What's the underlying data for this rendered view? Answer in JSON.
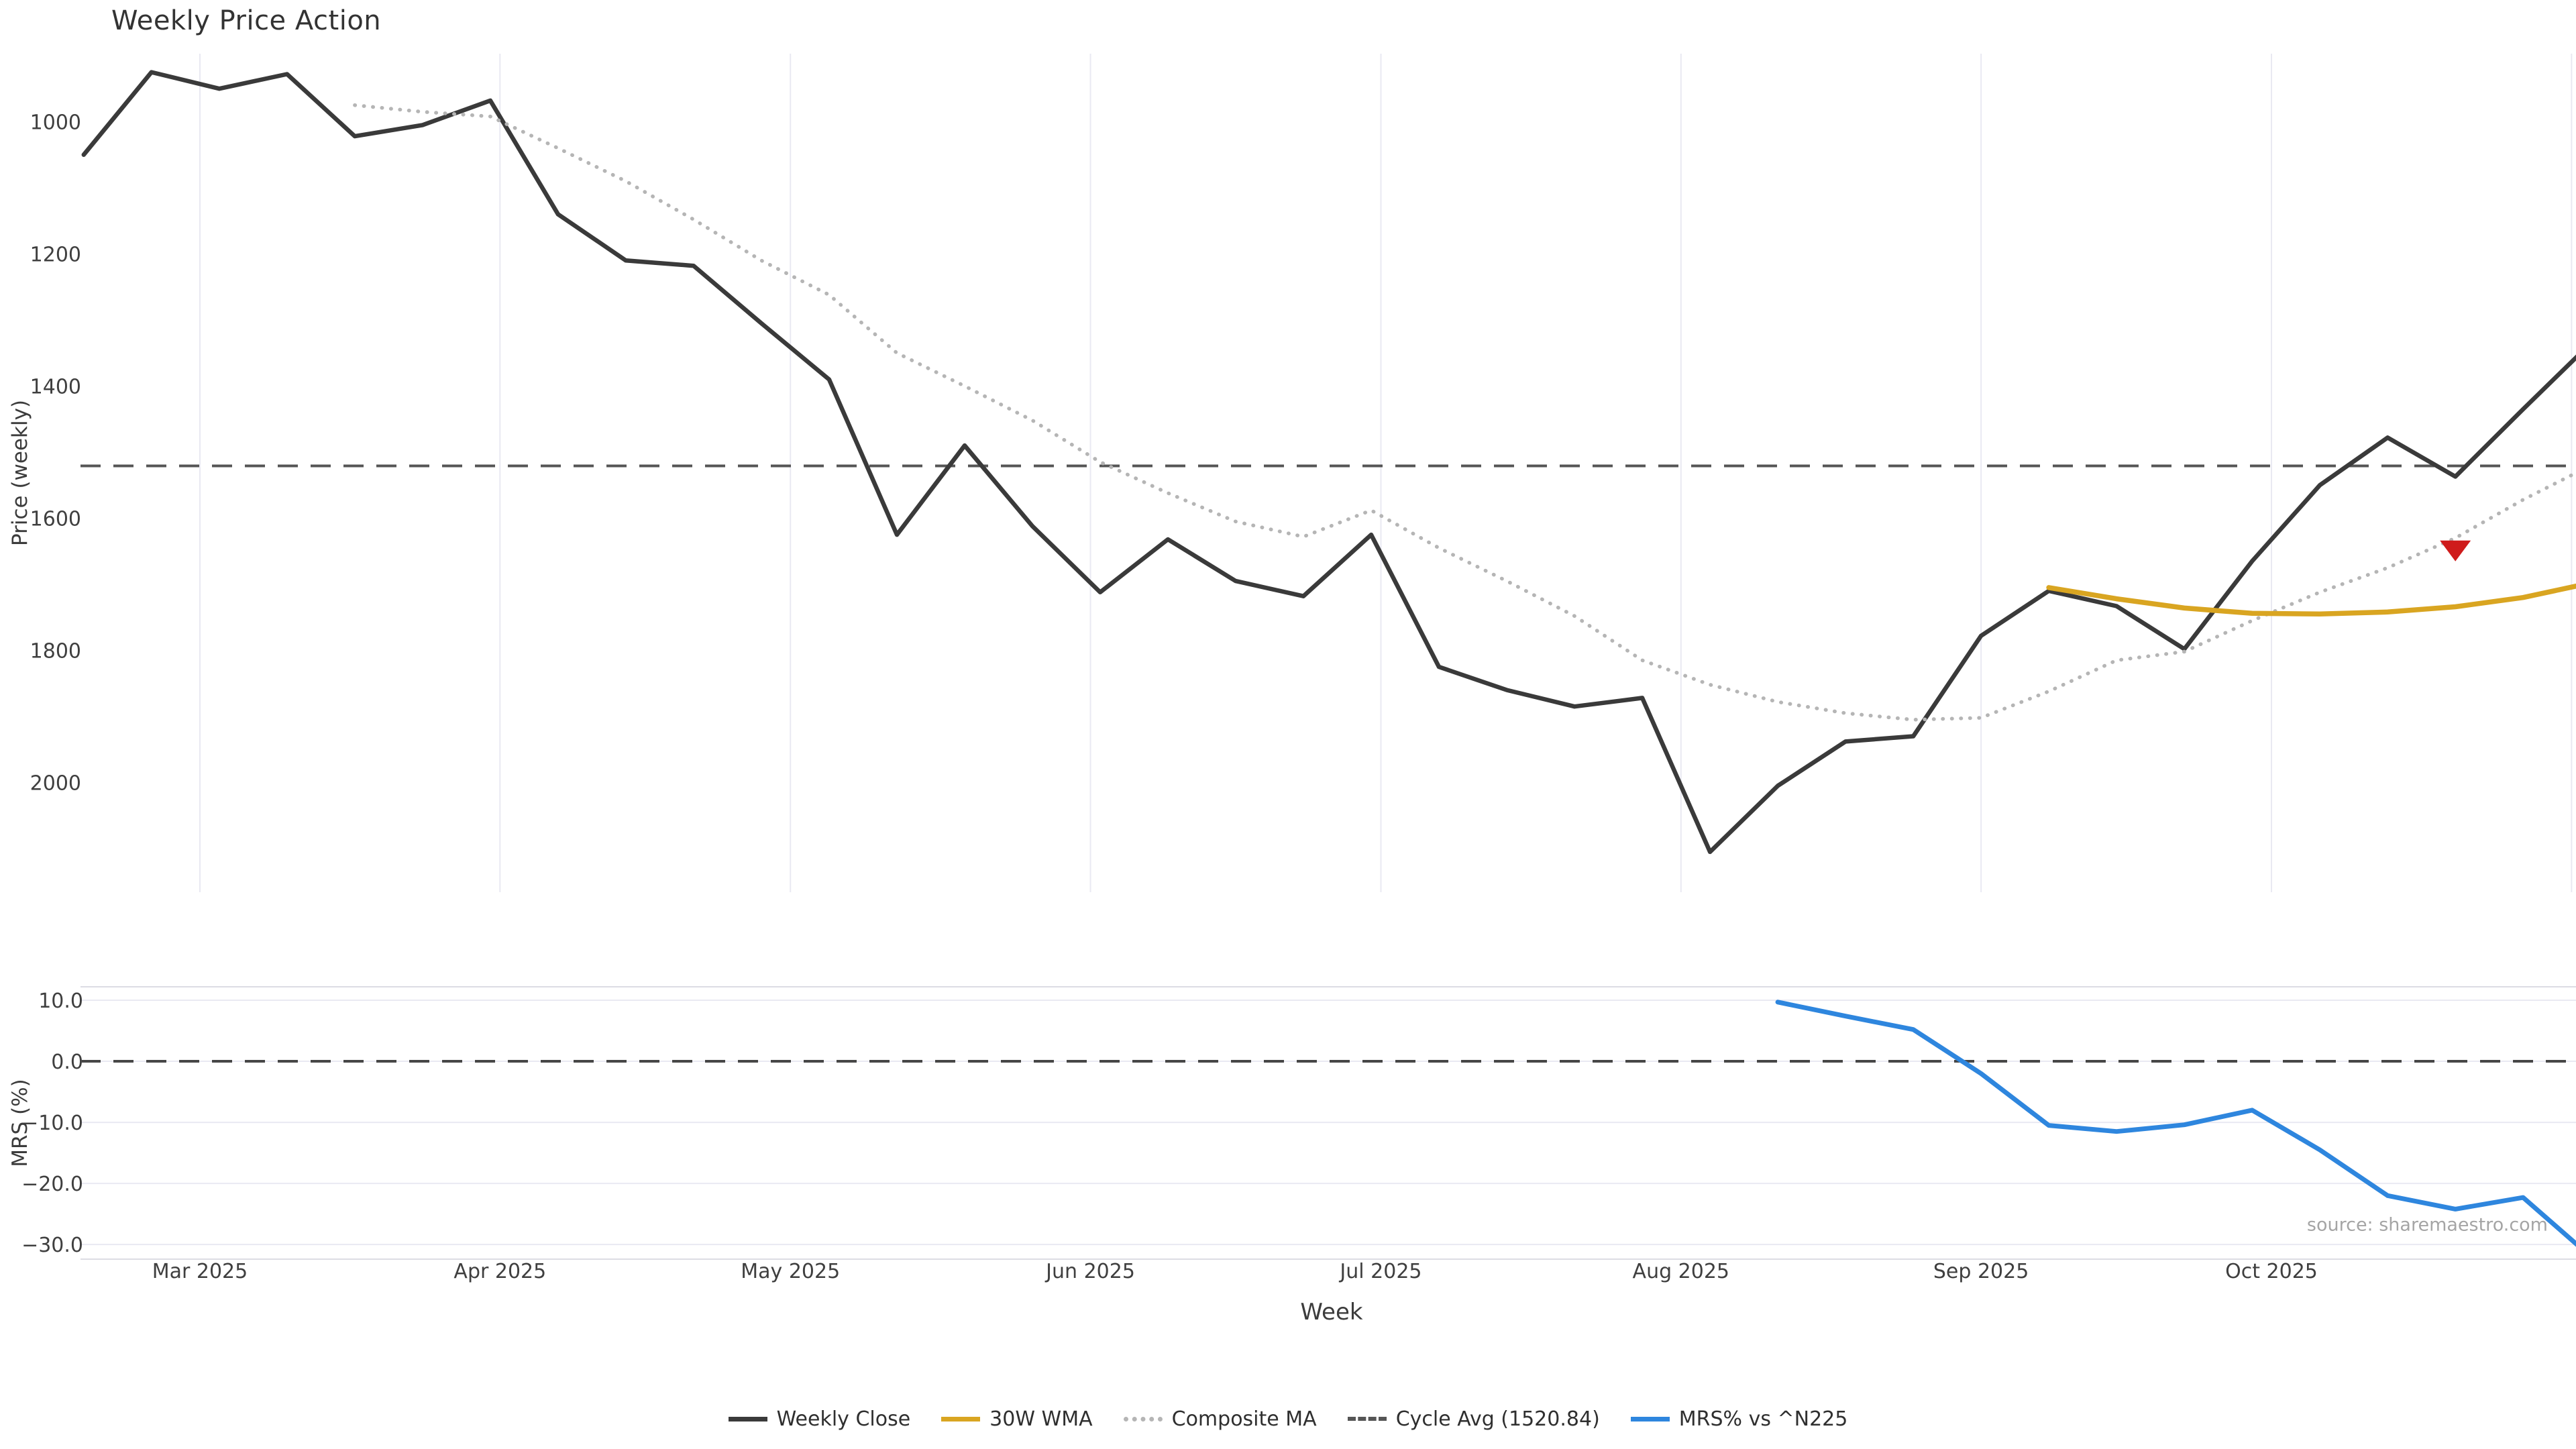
{
  "title": "Weekly Price Action",
  "source_note": "source: sharemaestro.com",
  "colors": {
    "weekly_close": "#3a3a3a",
    "wma_30w": "#d9a521",
    "composite_ma": "#b5b5b5",
    "cycle_avg": "#555555",
    "mrs": "#2e86de",
    "marker_red": "#cf1b1b",
    "gridline": "#e9e9f2",
    "spine": "#dcdce4",
    "tick_text": "#3f3f3f"
  },
  "legend": {
    "items": [
      {
        "label": "Weekly Close",
        "color": "#3a3a3a",
        "style": "solid"
      },
      {
        "label": "30W WMA",
        "color": "#d9a521",
        "style": "solid"
      },
      {
        "label": "Composite MA",
        "color": "#b5b5b5",
        "style": "dotted"
      },
      {
        "label": "Cycle Avg (1520.84)",
        "color": "#555555",
        "style": "dashed"
      },
      {
        "label": "MRS% vs ^N225",
        "color": "#2e86de",
        "style": "solid"
      }
    ]
  },
  "chart_data": {
    "type": "line",
    "title": "Weekly Price Action",
    "xlabel": "Week",
    "x_frequency": "weekly",
    "months": [
      {
        "date": "2025-03-01",
        "label": "Mar 2025"
      },
      {
        "date": "2025-04-01",
        "label": "Apr 2025"
      },
      {
        "date": "2025-05-01",
        "label": "May 2025"
      },
      {
        "date": "2025-06-01",
        "label": "Jun 2025"
      },
      {
        "date": "2025-07-01",
        "label": "Jul 2025"
      },
      {
        "date": "2025-08-01",
        "label": "Aug 2025"
      },
      {
        "date": "2025-09-01",
        "label": "Sep 2025"
      },
      {
        "date": "2025-10-01",
        "label": "Oct 2025"
      },
      {
        "date": "2025-11-01",
        "label": ""
      }
    ],
    "panels": [
      {
        "name": "price",
        "ylabel": "Price (weekly)",
        "yticks": [
          1000,
          1200,
          1400,
          1600,
          1800,
          2000
        ],
        "ylim": [
          897,
          2166
        ],
        "grid": "vertical-months",
        "hline": {
          "name": "Cycle Avg",
          "value": 1520.84,
          "color": "#555555",
          "style": "dashed"
        },
        "series": [
          {
            "name": "Weekly Close",
            "color": "#3a3a3a",
            "style": "solid",
            "width": 6.5,
            "dates": [
              "2025-02-17",
              "2025-02-24",
              "2025-03-03",
              "2025-03-10",
              "2025-03-17",
              "2025-03-24",
              "2025-03-31",
              "2025-04-07",
              "2025-04-14",
              "2025-04-21",
              "2025-04-28",
              "2025-05-05",
              "2025-05-12",
              "2025-05-19",
              "2025-05-26",
              "2025-06-02",
              "2025-06-09",
              "2025-06-16",
              "2025-06-23",
              "2025-06-30",
              "2025-07-07",
              "2025-07-14",
              "2025-07-21",
              "2025-07-28",
              "2025-08-04",
              "2025-08-11",
              "2025-08-18",
              "2025-08-25",
              "2025-09-01",
              "2025-09-08",
              "2025-09-15",
              "2025-09-22",
              "2025-09-29",
              "2025-10-06",
              "2025-10-13",
              "2025-10-20",
              "2025-10-27",
              "2025-11-03"
            ],
            "values": [
              1050,
              925,
              950,
              928,
              1022,
              1005,
              968,
              1140,
              1210,
              1218,
              1305,
              1390,
              1625,
              1490,
              1612,
              1712,
              1632,
              1695,
              1718,
              1625,
              1825,
              1860,
              1885,
              1872,
              2105,
              2005,
              1938,
              1930,
              1778,
              1710,
              1733,
              1798,
              1665,
              1550,
              1478,
              1537,
              1435,
              1335
            ]
          },
          {
            "name": "Composite MA",
            "color": "#b5b5b5",
            "style": "dotted",
            "width": 5.5,
            "dates": [
              "2025-03-17",
              "2025-03-24",
              "2025-03-31",
              "2025-04-07",
              "2025-04-14",
              "2025-04-21",
              "2025-04-28",
              "2025-05-05",
              "2025-05-12",
              "2025-05-19",
              "2025-05-26",
              "2025-06-02",
              "2025-06-09",
              "2025-06-16",
              "2025-06-23",
              "2025-06-30",
              "2025-07-07",
              "2025-07-14",
              "2025-07-21",
              "2025-07-28",
              "2025-08-04",
              "2025-08-11",
              "2025-08-18",
              "2025-08-25",
              "2025-09-01",
              "2025-09-08",
              "2025-09-15",
              "2025-09-22",
              "2025-09-29",
              "2025-10-06",
              "2025-10-13",
              "2025-10-20",
              "2025-10-27",
              "2025-11-03"
            ],
            "values": [
              975,
              985,
              992,
              1040,
              1090,
              1148,
              1210,
              1262,
              1350,
              1400,
              1452,
              1515,
              1562,
              1605,
              1628,
              1588,
              1645,
              1695,
              1748,
              1815,
              1852,
              1878,
              1895,
              1905,
              1902,
              1862,
              1815,
              1802,
              1755,
              1712,
              1675,
              1630,
              1572,
              1520
            ]
          },
          {
            "name": "30W WMA",
            "color": "#d9a521",
            "style": "solid",
            "width": 7.5,
            "dates": [
              "2025-09-08",
              "2025-09-15",
              "2025-09-22",
              "2025-09-29",
              "2025-10-06",
              "2025-10-13",
              "2025-10-20",
              "2025-10-27",
              "2025-11-03"
            ],
            "values": [
              1705,
              1722,
              1736,
              1744,
              1745,
              1742,
              1734,
              1720,
              1698
            ]
          }
        ],
        "marker": {
          "shape": "triangle-down",
          "color": "#cf1b1b",
          "date": "2025-10-20",
          "value": 1648
        }
      },
      {
        "name": "mrs",
        "ylabel": "MRS (%)",
        "yticks": [
          10.0,
          0.0,
          -10.0,
          -20.0,
          -30.0
        ],
        "ylim": [
          12.2,
          -32.4
        ],
        "grid": "horizontal",
        "hline": {
          "name": "zero",
          "value": 0.0,
          "color": "#474747",
          "style": "dashed"
        },
        "series": [
          {
            "name": "MRS% vs ^N225",
            "color": "#2e86de",
            "style": "solid",
            "width": 7,
            "dates": [
              "2025-08-11",
              "2025-08-18",
              "2025-08-25",
              "2025-09-01",
              "2025-09-08",
              "2025-09-15",
              "2025-09-22",
              "2025-09-29",
              "2025-10-06",
              "2025-10-13",
              "2025-10-20",
              "2025-10-27",
              "2025-11-03"
            ],
            "values": [
              9.7,
              7.4,
              5.2,
              -2.0,
              -10.5,
              -11.5,
              -10.4,
              -8.0,
              -14.5,
              -22.0,
              -24.2,
              -22.3,
              -32.0
            ]
          }
        ]
      }
    ]
  }
}
